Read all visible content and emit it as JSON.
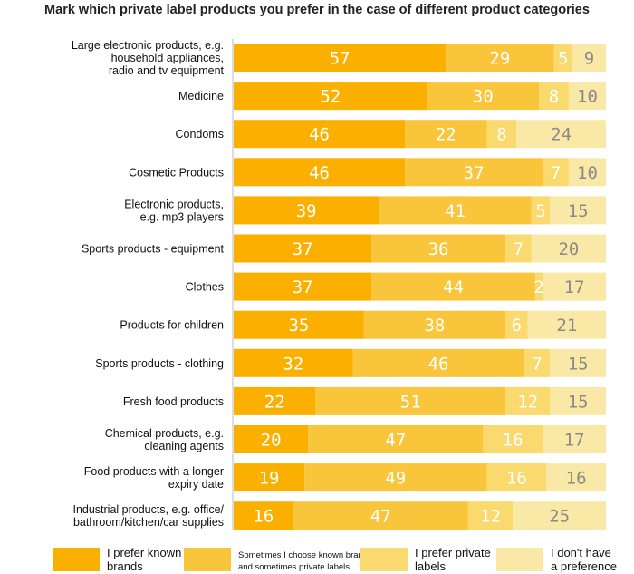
{
  "chart_data": {
    "type": "bar",
    "orientation": "horizontal",
    "stacked": true,
    "title": "Mark which private label products you prefer in the case of different product categories",
    "categories": [
      "Large electronic products, e.g. household appliances, radio and tv equipment",
      "Medicine",
      "Condoms",
      "Cosmetic Products",
      "Electronic products, e.g. mp3 players",
      "Sports products - equipment",
      "Clothes",
      "Products for children",
      "Sports products - clothing",
      "Fresh food products",
      "Chemical products, e.g. cleaning agents",
      "Food products with a longer expiry date",
      "Industrial products, e.g. office/ bathroom/kitchen/car supplies"
    ],
    "category_lines": [
      [
        "Large electronic products, e.g.",
        "household appliances,",
        "radio and tv equipment"
      ],
      [
        "Medicine"
      ],
      [
        "Condoms"
      ],
      [
        "Cosmetic Products"
      ],
      [
        "Electronic products,",
        "e.g. mp3 players"
      ],
      [
        "Sports products - equipment"
      ],
      [
        "Clothes"
      ],
      [
        "Products for children"
      ],
      [
        "Sports products - clothing"
      ],
      [
        "Fresh food products"
      ],
      [
        "Chemical products, e.g.",
        "cleaning agents"
      ],
      [
        "Food products with a longer",
        "expiry date"
      ],
      [
        "Industrial products, e.g. office/",
        "bathroom/kitchen/car supplies"
      ]
    ],
    "series": [
      {
        "name": "I prefer known brands",
        "color": "#FBB000",
        "label_color": "#ffffff",
        "values": [
          57,
          52,
          46,
          46,
          39,
          37,
          37,
          35,
          32,
          22,
          20,
          19,
          16
        ]
      },
      {
        "name": "Sometimes I choose known brands and sometimes private labels",
        "color": "#F9C53A",
        "label_color": "#ffffff",
        "values": [
          29,
          30,
          22,
          37,
          41,
          36,
          44,
          38,
          46,
          51,
          47,
          49,
          47
        ]
      },
      {
        "name": "I prefer private labels",
        "color": "#FAD96E",
        "label_color": "#ffffff",
        "values": [
          5,
          8,
          8,
          7,
          5,
          7,
          2,
          6,
          7,
          12,
          16,
          16,
          12
        ]
      },
      {
        "name": "I don't have a preference",
        "color": "#FAE9A6",
        "label_color": "#8a8a8a",
        "values": [
          9,
          10,
          24,
          10,
          15,
          20,
          17,
          21,
          15,
          15,
          17,
          16,
          25
        ]
      }
    ],
    "xlim": [
      0,
      100
    ],
    "legend_position": "bottom"
  },
  "legend": {
    "items": [
      {
        "lines": [
          "I prefer known",
          "brands"
        ],
        "color": "#FBB000",
        "size": "large"
      },
      {
        "lines": [
          "Sometimes I choose known brands",
          "and sometimes private labels"
        ],
        "color": "#F9C53A",
        "size": "small"
      },
      {
        "lines": [
          "I prefer private",
          "labels"
        ],
        "color": "#FAD96E",
        "size": "large"
      },
      {
        "lines": [
          "I don't have",
          "a preference"
        ],
        "color": "#FAE9A6",
        "size": "large"
      }
    ]
  }
}
